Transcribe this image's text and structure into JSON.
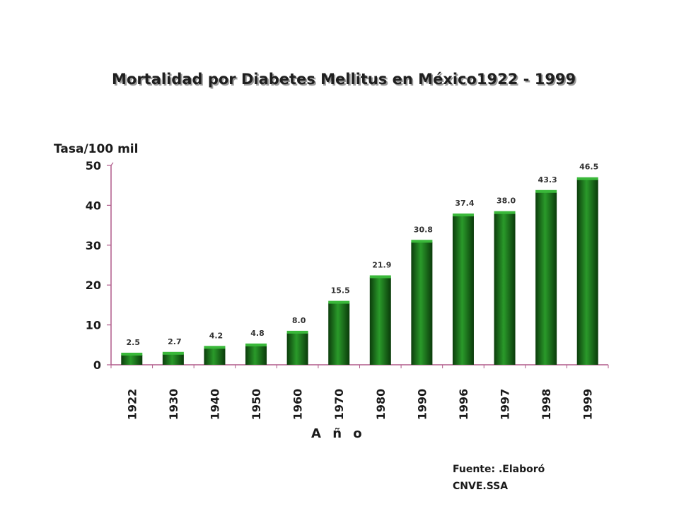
{
  "chart_data": {
    "type": "bar",
    "title": "Mortalidad  por Diabetes Mellitus en México1922 - 1999",
    "ylabel": "Tasa/100 mil",
    "xlabel": "A ñ o",
    "categories": [
      "1922",
      "1930",
      "1940",
      "1950",
      "1960",
      "1970",
      "1980",
      "1990",
      "1996",
      "1997",
      "1998",
      "1999"
    ],
    "values": [
      2.5,
      2.7,
      4.2,
      4.8,
      8.0,
      15.5,
      21.9,
      30.8,
      37.4,
      38.0,
      43.3,
      46.5
    ],
    "value_labels": [
      "2.5",
      "2.7",
      "4.2",
      "4.8",
      "8.0",
      "15.5",
      "21.9",
      "30.8",
      "37.4",
      "38.0",
      "43.3",
      "46.5"
    ],
    "ylim": [
      0,
      50
    ],
    "yticks": [
      "0",
      "10",
      "20",
      "30",
      "40",
      "50"
    ],
    "grid": false,
    "legend": "none",
    "bar_color": "#1a7a1a",
    "axis_color": "#b05a8a"
  },
  "source": {
    "line1": "Fuente: .Elaboró",
    "line2": "CNVE.SSA"
  }
}
